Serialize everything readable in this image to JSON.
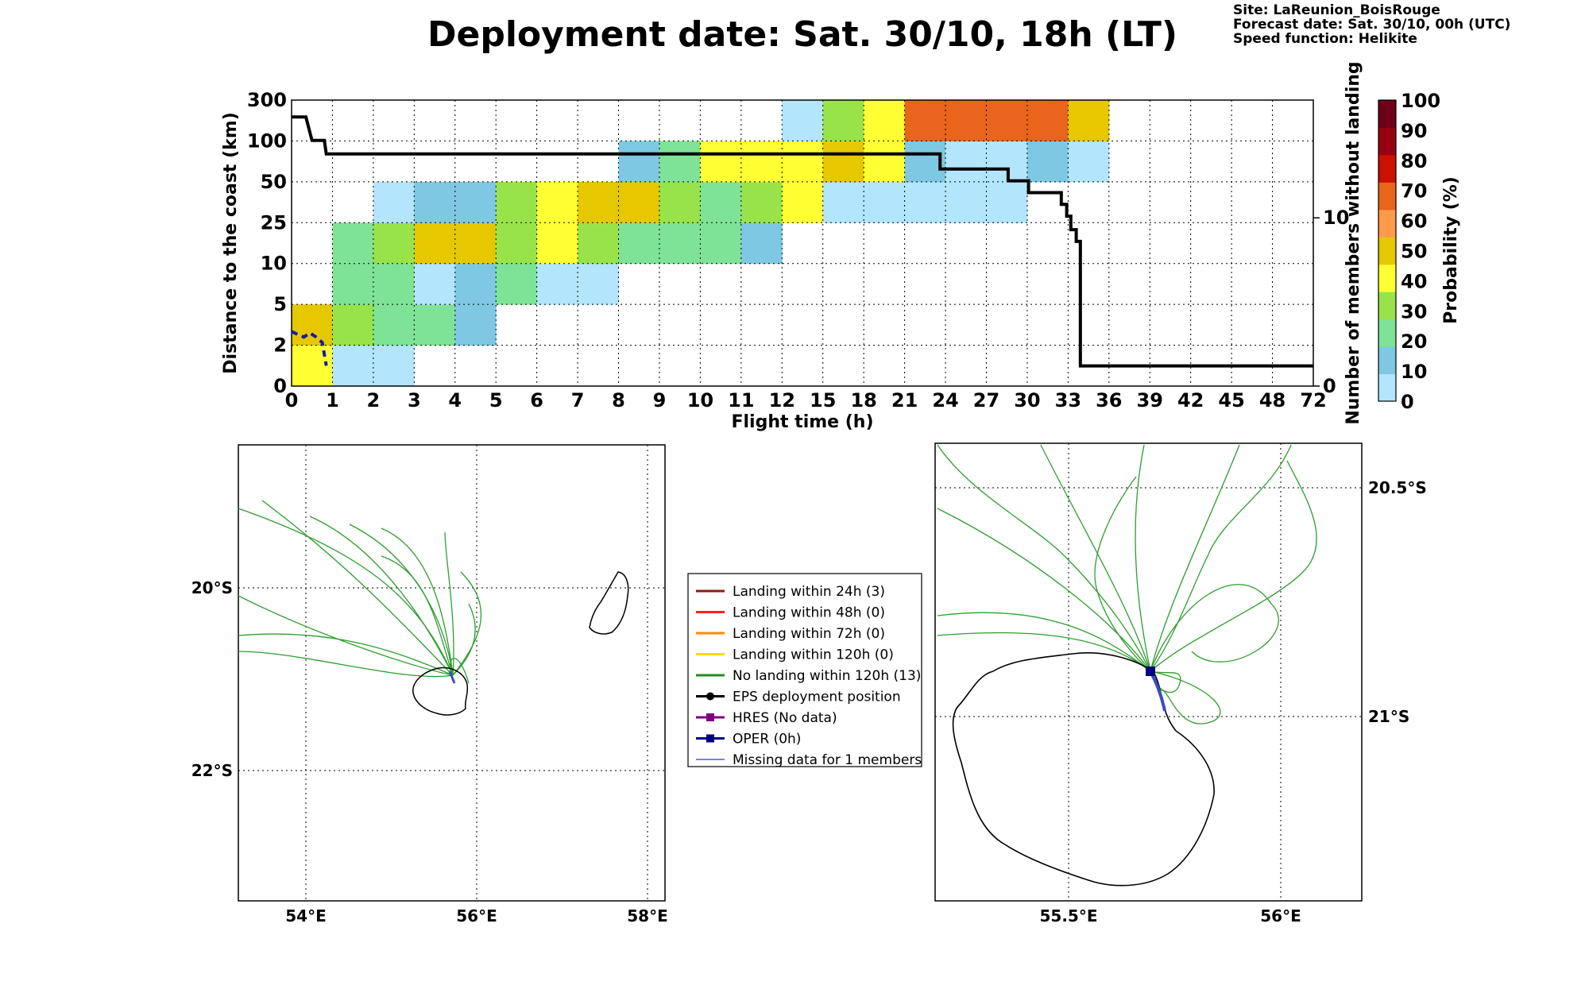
{
  "header": {
    "title": "Deployment date: Sat. 30/10, 18h (LT)",
    "site": "Site: LaReunion_BoisRouge",
    "forecast": "Forecast date: Sat. 30/10, 00h (UTC)",
    "speed": "Speed function: Helikite"
  },
  "chart_data": [
    {
      "type": "heatmap",
      "xlabel": "Flight time (h)",
      "ylabel": "Distance to the coast (km)",
      "y2label": "Number of members without landing",
      "x_ticks": [
        "0",
        "1",
        "2",
        "3",
        "4",
        "5",
        "6",
        "7",
        "8",
        "9",
        "10",
        "11",
        "12",
        "15",
        "18",
        "21",
        "24",
        "27",
        "30",
        "33",
        "36",
        "39",
        "42",
        "45",
        "48",
        "72"
      ],
      "y_ticks": [
        "0",
        "2",
        "5",
        "10",
        "25",
        "50",
        "100",
        "300"
      ],
      "y2_ticks": [
        "0",
        "10"
      ],
      "y2_range": [
        0,
        17
      ],
      "colorbar": {
        "label": "Probability (%)",
        "ticks": [
          "0",
          "10",
          "20",
          "30",
          "40",
          "50",
          "60",
          "70",
          "80",
          "90",
          "100"
        ],
        "colors": [
          "#b3e5fc",
          "#7ec8e3",
          "#7ee396",
          "#99e34a",
          "#ffff33",
          "#e5c800",
          "#ff9a4d",
          "#e8651b",
          "#cc1100",
          "#990011",
          "#6e0018"
        ]
      },
      "cells": [
        {
          "x": 0,
          "y": 0,
          "c": "#ffff33"
        },
        {
          "x": 0,
          "y": 1,
          "c": "#e5c800"
        },
        {
          "x": 1,
          "y": 0,
          "c": "#b3e5fc"
        },
        {
          "x": 1,
          "y": 1,
          "c": "#99e34a"
        },
        {
          "x": 1,
          "y": 2,
          "c": "#7ee396"
        },
        {
          "x": 1,
          "y": 3,
          "c": "#7ee396"
        },
        {
          "x": 2,
          "y": 0,
          "c": "#b3e5fc"
        },
        {
          "x": 2,
          "y": 1,
          "c": "#7ee396"
        },
        {
          "x": 2,
          "y": 2,
          "c": "#7ee396"
        },
        {
          "x": 2,
          "y": 3,
          "c": "#99e34a"
        },
        {
          "x": 2,
          "y": 4,
          "c": "#b3e5fc"
        },
        {
          "x": 3,
          "y": 1,
          "c": "#7ee396"
        },
        {
          "x": 3,
          "y": 2,
          "c": "#b3e5fc"
        },
        {
          "x": 3,
          "y": 3,
          "c": "#e5c800"
        },
        {
          "x": 3,
          "y": 4,
          "c": "#7ec8e3"
        },
        {
          "x": 4,
          "y": 1,
          "c": "#7ec8e3"
        },
        {
          "x": 4,
          "y": 2,
          "c": "#7ec8e3"
        },
        {
          "x": 4,
          "y": 3,
          "c": "#e5c800"
        },
        {
          "x": 4,
          "y": 4,
          "c": "#7ec8e3"
        },
        {
          "x": 5,
          "y": 2,
          "c": "#7ee396"
        },
        {
          "x": 5,
          "y": 3,
          "c": "#99e34a"
        },
        {
          "x": 5,
          "y": 4,
          "c": "#99e34a"
        },
        {
          "x": 6,
          "y": 2,
          "c": "#b3e5fc"
        },
        {
          "x": 6,
          "y": 3,
          "c": "#ffff33"
        },
        {
          "x": 6,
          "y": 4,
          "c": "#ffff33"
        },
        {
          "x": 7,
          "y": 2,
          "c": "#b3e5fc"
        },
        {
          "x": 7,
          "y": 3,
          "c": "#99e34a"
        },
        {
          "x": 7,
          "y": 4,
          "c": "#e5c800"
        },
        {
          "x": 8,
          "y": 3,
          "c": "#7ee396"
        },
        {
          "x": 8,
          "y": 4,
          "c": "#e5c800"
        },
        {
          "x": 8,
          "y": 5,
          "c": "#7ec8e3"
        },
        {
          "x": 9,
          "y": 3,
          "c": "#7ee396"
        },
        {
          "x": 9,
          "y": 4,
          "c": "#99e34a"
        },
        {
          "x": 9,
          "y": 5,
          "c": "#7ee396"
        },
        {
          "x": 10,
          "y": 3,
          "c": "#7ee396"
        },
        {
          "x": 10,
          "y": 4,
          "c": "#7ee396"
        },
        {
          "x": 10,
          "y": 5,
          "c": "#ffff33"
        },
        {
          "x": 11,
          "y": 3,
          "c": "#7ec8e3"
        },
        {
          "x": 11,
          "y": 4,
          "c": "#99e34a"
        },
        {
          "x": 11,
          "y": 5,
          "c": "#ffff33"
        },
        {
          "x": 12,
          "y": 4,
          "c": "#ffff33"
        },
        {
          "x": 12,
          "y": 5,
          "c": "#ffff33"
        },
        {
          "x": 12,
          "y": 6,
          "c": "#b3e5fc"
        },
        {
          "x": 13,
          "y": 4,
          "c": "#b3e5fc"
        },
        {
          "x": 13,
          "y": 5,
          "c": "#e5c800"
        },
        {
          "x": 13,
          "y": 6,
          "c": "#99e34a"
        },
        {
          "x": 14,
          "y": 4,
          "c": "#b3e5fc"
        },
        {
          "x": 14,
          "y": 5,
          "c": "#ffff33"
        },
        {
          "x": 14,
          "y": 6,
          "c": "#ffff33"
        },
        {
          "x": 15,
          "y": 4,
          "c": "#b3e5fc"
        },
        {
          "x": 15,
          "y": 5,
          "c": "#7ec8e3"
        },
        {
          "x": 15,
          "y": 6,
          "c": "#e8651b"
        },
        {
          "x": 16,
          "y": 4,
          "c": "#b3e5fc"
        },
        {
          "x": 16,
          "y": 5,
          "c": "#b3e5fc"
        },
        {
          "x": 16,
          "y": 6,
          "c": "#e8651b"
        },
        {
          "x": 17,
          "y": 4,
          "c": "#b3e5fc"
        },
        {
          "x": 17,
          "y": 5,
          "c": "#b3e5fc"
        },
        {
          "x": 17,
          "y": 6,
          "c": "#e8651b"
        },
        {
          "x": 18,
          "y": 5,
          "c": "#7ec8e3"
        },
        {
          "x": 18,
          "y": 6,
          "c": "#e8651b"
        },
        {
          "x": 19,
          "y": 5,
          "c": "#b3e5fc"
        },
        {
          "x": 19,
          "y": 6,
          "c": "#e5c800"
        }
      ],
      "members_line": [
        [
          0,
          16
        ],
        [
          0.35,
          16
        ],
        [
          0.5,
          14.6
        ],
        [
          0.8,
          14.6
        ],
        [
          0.85,
          13.8
        ],
        [
          23.6,
          13.8
        ],
        [
          23.6,
          12.9
        ],
        [
          28.6,
          12.9
        ],
        [
          28.6,
          12.2
        ],
        [
          30.1,
          12.2
        ],
        [
          30.1,
          11.5
        ],
        [
          32.5,
          11.5
        ],
        [
          32.5,
          10.8
        ],
        [
          32.9,
          10.8
        ],
        [
          32.9,
          10.1
        ],
        [
          33.2,
          10.1
        ],
        [
          33.2,
          9.3
        ],
        [
          33.6,
          9.3
        ],
        [
          33.6,
          8.6
        ],
        [
          33.9,
          8.6
        ],
        [
          33.9,
          1.2
        ],
        [
          72,
          1.2
        ]
      ],
      "oper_line": [
        [
          0,
          3
        ],
        [
          0.15,
          2.8
        ],
        [
          0.3,
          2.6
        ],
        [
          0.45,
          2.9
        ],
        [
          0.6,
          2.6
        ],
        [
          0.75,
          2.2
        ],
        [
          0.85,
          1
        ]
      ]
    },
    {
      "type": "map",
      "x_ticks": [
        "54°E",
        "56°E",
        "58°E"
      ],
      "y_ticks": [
        "20°S",
        "22°S"
      ]
    },
    {
      "type": "map",
      "x_ticks": [
        "55.5°E",
        "56°E"
      ],
      "y_ticks": [
        "20.5°S",
        "21°S"
      ]
    }
  ],
  "legend": {
    "items": [
      {
        "label": "Landing within 24h (3)",
        "color": "#8b1a1a",
        "kind": "line"
      },
      {
        "label": "Landing within 48h (0)",
        "color": "#ff2020",
        "kind": "line"
      },
      {
        "label": "Landing within 72h (0)",
        "color": "#ff8c00",
        "kind": "line"
      },
      {
        "label": "Landing within 120h (0)",
        "color": "#ffd700",
        "kind": "line"
      },
      {
        "label": "No landing within 120h (13)",
        "color": "#228b22",
        "kind": "line"
      },
      {
        "label": "EPS deployment position",
        "color": "#000000",
        "kind": "dot"
      },
      {
        "label": "HRES (No data)",
        "color": "#800080",
        "kind": "square"
      },
      {
        "label": "OPER (0h)",
        "color": "#000080",
        "kind": "square"
      },
      {
        "label": "Missing data for 1 members",
        "color": "#4a5bd8",
        "kind": "thin"
      }
    ]
  }
}
